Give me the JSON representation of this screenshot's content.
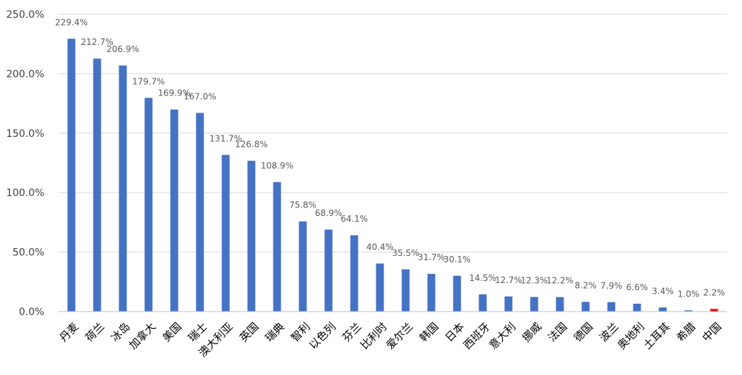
{
  "chart_data": {
    "type": "bar",
    "title": "",
    "xlabel": "",
    "ylabel": "",
    "ylim": [
      0,
      250
    ],
    "y_ticks": [
      "0.0%",
      "50.0%",
      "100.0%",
      "150.0%",
      "200.0%",
      "250.0%"
    ],
    "y_tick_values": [
      0,
      50,
      100,
      150,
      200,
      250
    ],
    "grid": true,
    "legend": "none",
    "bar_color": "#4472C4",
    "highlight_color": "#FF0000",
    "highlight_label_color": "#FF0000",
    "categories": [
      "丹麦",
      "荷兰",
      "冰岛",
      "加拿大",
      "美国",
      "瑞士",
      "澳大利亚",
      "英国",
      "瑞典",
      "智利",
      "以色列",
      "芬兰",
      "比利时",
      "爱尔兰",
      "韩国",
      "日本",
      "西班牙",
      "意大利",
      "挪威",
      "法国",
      "德国",
      "波兰",
      "奥地利",
      "土耳其",
      "希腊",
      "中国"
    ],
    "values": [
      229.4,
      212.7,
      206.9,
      179.7,
      169.9,
      167.0,
      131.7,
      126.8,
      108.9,
      75.8,
      68.9,
      64.1,
      40.4,
      35.5,
      31.7,
      30.1,
      14.5,
      12.7,
      12.3,
      12.2,
      8.2,
      7.9,
      6.6,
      3.4,
      1.0,
      2.2
    ],
    "data_labels": [
      "229.4%",
      "212.7%",
      "206.9%",
      "179.7%",
      "169.9%",
      "167.0%",
      "131.7%",
      "126.8%",
      "108.9%",
      "75.8%",
      "68.9%",
      "64.1%",
      "40.4%",
      "35.5%",
      "31.7%",
      "30.1%",
      "14.5%",
      "12.7%",
      "12.3%",
      "12.2%",
      "8.2%",
      "7.9%",
      "6.6%",
      "3.4%",
      "1.0%",
      "2.2%"
    ],
    "highlight_index": 25
  }
}
